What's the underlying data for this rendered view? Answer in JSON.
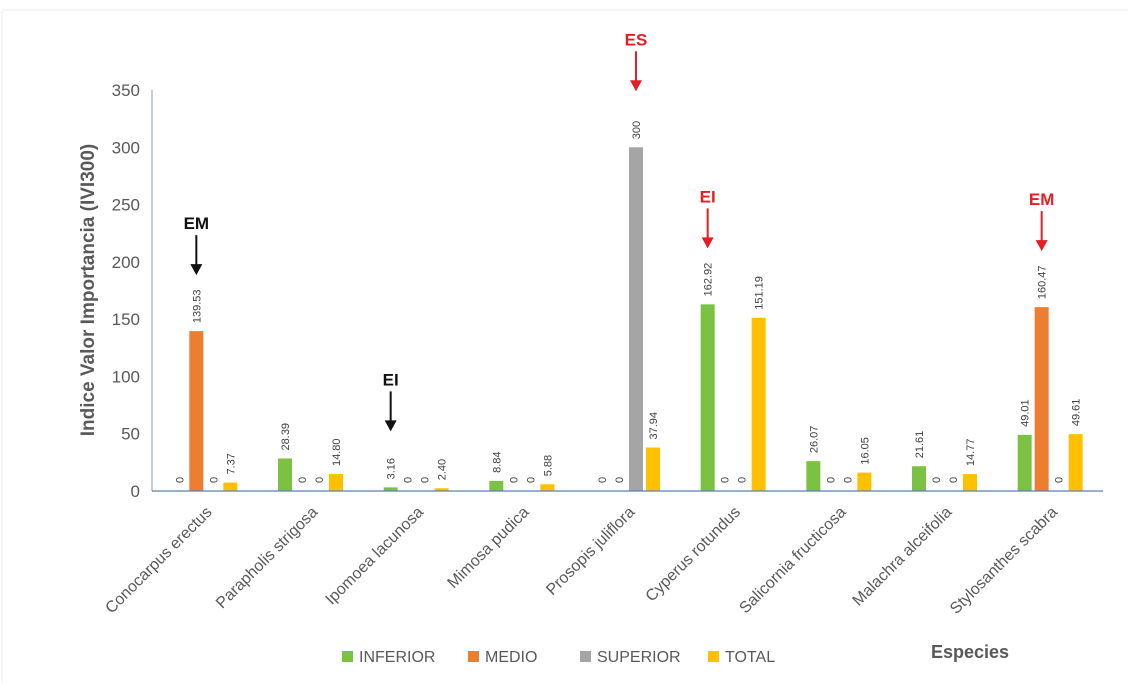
{
  "chart_data": {
    "type": "bar",
    "title": "",
    "ylabel": "Indice Valor Importancia (IVI300)",
    "xlabel": "Especies",
    "ylim": [
      0,
      350
    ],
    "yticks": [
      0,
      50,
      100,
      150,
      200,
      250,
      300,
      350
    ],
    "grid": false,
    "legend_position": "bottom",
    "categories": [
      "Conocarpus erectus",
      "Parapholis strigosa",
      "Ipomoea lacunosa",
      "Mimosa pudica",
      "Prosopis juliflora",
      "Cyperus rotundus",
      "Salicornia fructicosa",
      "Malachra alceifolia",
      "Stylosanthes scabra"
    ],
    "series": [
      {
        "name": "INFERIOR",
        "color": "#7cc242",
        "values": [
          0,
          28.39,
          3.16,
          8.84,
          0,
          162.92,
          26.07,
          21.61,
          49.01
        ],
        "labels": [
          "0",
          "28.39",
          "3.16",
          "8.84",
          "0",
          "162.92",
          "26.07",
          "21.61",
          "49.01"
        ]
      },
      {
        "name": "MEDIO",
        "color": "#ed7d31",
        "values": [
          139.53,
          0,
          0,
          0,
          0,
          0,
          0,
          0,
          160.47
        ],
        "labels": [
          "139.53",
          "0",
          "0",
          "0",
          "0",
          "0",
          "0",
          "0",
          "160.47"
        ]
      },
      {
        "name": "SUPERIOR",
        "color": "#a5a5a5",
        "values": [
          0,
          0,
          0,
          0,
          300,
          0,
          0,
          0,
          0
        ],
        "labels": [
          "0",
          "0",
          "0",
          "0",
          "300",
          "0",
          "0",
          "0",
          "0"
        ]
      },
      {
        "name": "TOTAL",
        "color": "#ffc000",
        "values": [
          7.37,
          14.8,
          2.4,
          5.88,
          37.94,
          151.19,
          16.05,
          14.77,
          49.61
        ],
        "labels": [
          "7.37",
          "14.80",
          "2.40",
          "5.88",
          "37.94",
          "151.19",
          "16.05",
          "14.77",
          "49.61"
        ]
      }
    ],
    "annotations": [
      {
        "text": "EM",
        "category": "Conocarpus erectus",
        "series": "MEDIO",
        "color": "#111111"
      },
      {
        "text": "EI",
        "category": "Ipomoea lacunosa",
        "series": "INFERIOR",
        "color": "#111111"
      },
      {
        "text": "ES",
        "category": "Prosopis juliflora",
        "series": "SUPERIOR",
        "color": "#e31e24"
      },
      {
        "text": "EI",
        "category": "Cyperus rotundus",
        "series": "INFERIOR",
        "color": "#e31e24"
      },
      {
        "text": "EM",
        "category": "Stylosanthes scabra",
        "series": "MEDIO",
        "color": "#e31e24"
      }
    ]
  }
}
